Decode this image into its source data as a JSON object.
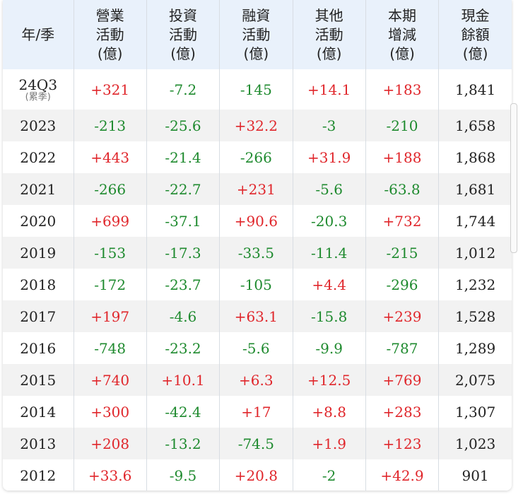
{
  "table": {
    "headers": [
      {
        "lines": [
          "年/季"
        ]
      },
      {
        "lines": [
          "營業",
          "活動",
          "(億)"
        ]
      },
      {
        "lines": [
          "投資",
          "活動",
          "(億)"
        ]
      },
      {
        "lines": [
          "融資",
          "活動",
          "(億)"
        ]
      },
      {
        "lines": [
          "其他",
          "活動",
          "(億)"
        ]
      },
      {
        "lines": [
          "本期",
          "增減",
          "(億)"
        ]
      },
      {
        "lines": [
          "現金",
          "餘額",
          "(億)"
        ]
      }
    ],
    "rows": [
      {
        "period": "24Q3",
        "note": "(累季)",
        "values": [
          "+321",
          "-7.2",
          "-145",
          "+14.1",
          "+183",
          "1,841"
        ]
      },
      {
        "period": "2023",
        "values": [
          "-213",
          "-25.6",
          "+32.2",
          "-3",
          "-210",
          "1,658"
        ]
      },
      {
        "period": "2022",
        "values": [
          "+443",
          "-21.4",
          "-266",
          "+31.9",
          "+188",
          "1,868"
        ]
      },
      {
        "period": "2021",
        "values": [
          "-266",
          "-22.7",
          "+231",
          "-5.6",
          "-63.8",
          "1,681"
        ]
      },
      {
        "period": "2020",
        "values": [
          "+699",
          "-37.1",
          "+90.6",
          "-20.3",
          "+732",
          "1,744"
        ]
      },
      {
        "period": "2019",
        "values": [
          "-153",
          "-17.3",
          "-33.5",
          "-11.4",
          "-215",
          "1,012"
        ]
      },
      {
        "period": "2018",
        "values": [
          "-172",
          "-23.7",
          "-105",
          "+4.4",
          "-296",
          "1,232"
        ]
      },
      {
        "period": "2017",
        "values": [
          "+197",
          "-4.6",
          "+63.1",
          "-15.8",
          "+239",
          "1,528"
        ]
      },
      {
        "period": "2016",
        "values": [
          "-748",
          "-23.2",
          "-5.6",
          "-9.9",
          "-787",
          "1,289"
        ]
      },
      {
        "period": "2015",
        "values": [
          "+740",
          "+10.1",
          "+6.3",
          "+12.5",
          "+769",
          "2,075"
        ]
      },
      {
        "period": "2014",
        "values": [
          "+300",
          "-42.4",
          "+17",
          "+8.8",
          "+283",
          "1,307"
        ]
      },
      {
        "period": "2013",
        "values": [
          "+208",
          "-13.2",
          "-74.5",
          "+1.9",
          "+123",
          "1,023"
        ]
      },
      {
        "period": "2012",
        "values": [
          "+33.6",
          "-9.5",
          "+20.8",
          "-2",
          "+42.9",
          "901"
        ]
      }
    ]
  },
  "colors": {
    "positive": "#e0262b",
    "negative": "#1e8a2e",
    "header_bg": "#e9f1fb",
    "stripe_bg": "#f2f2f2"
  }
}
